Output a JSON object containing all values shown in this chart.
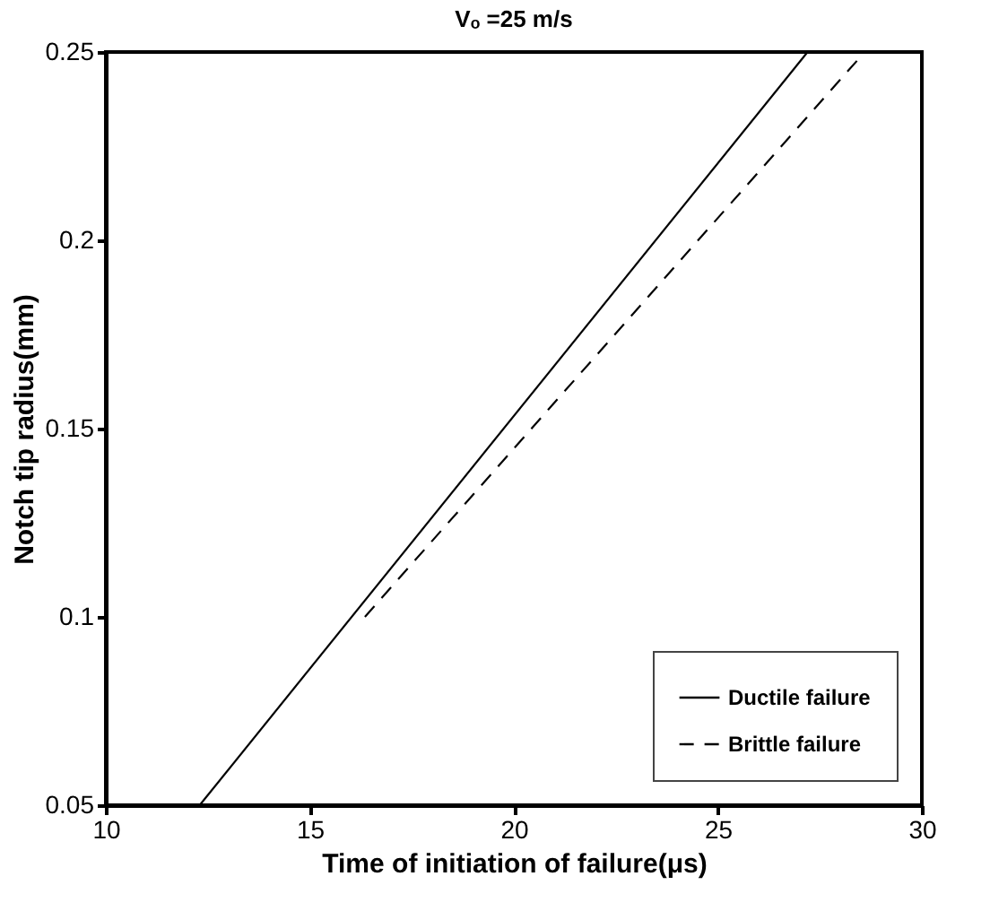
{
  "chart_data": {
    "type": "line",
    "title": "Vₒ =25 m/s",
    "xlabel": "Time of initiation of failure(μs)",
    "ylabel": "Notch tip radius(mm)",
    "xlim": [
      10,
      30
    ],
    "xticks": [
      10,
      15,
      20,
      25,
      30
    ],
    "ylim": [
      0.05,
      0.25
    ],
    "yticks": [
      0.05,
      0.1,
      0.15,
      0.2,
      0.25
    ],
    "grid": false,
    "legend": "bottom right",
    "marker": "none",
    "series": [
      {
        "name": "Ductile failure",
        "color": "#000000",
        "line_style": "solid",
        "x": [
          12.3,
          27.2
        ],
        "values": [
          0.05,
          0.25
        ]
      },
      {
        "name": "Brittle failure",
        "color": "#000000",
        "line_style": "dashed",
        "x": [
          16.35,
          28.6
        ],
        "values": [
          0.1,
          0.25
        ]
      }
    ]
  }
}
